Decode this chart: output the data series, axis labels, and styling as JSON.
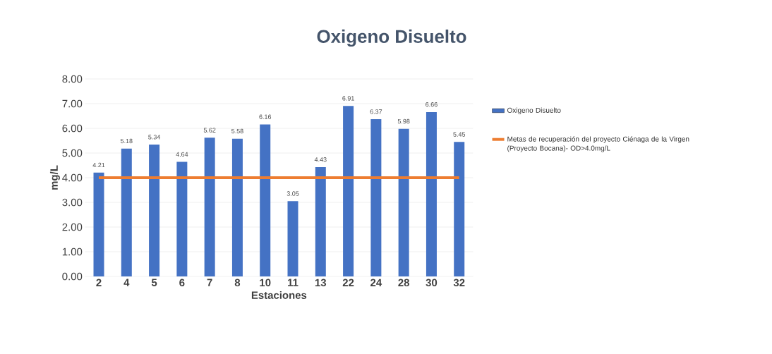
{
  "chart_data": {
    "type": "bar",
    "title": "Oxigeno Disuelto",
    "xlabel": "Estaciones",
    "ylabel": "mg/L",
    "categories": [
      "2",
      "4",
      "5",
      "6",
      "7",
      "8",
      "10",
      "11",
      "13",
      "22",
      "24",
      "28",
      "30",
      "32"
    ],
    "series": [
      {
        "name": "Oxigeno Disuelto",
        "color": "#4472c4",
        "values": [
          4.21,
          5.18,
          5.34,
          4.64,
          5.62,
          5.58,
          6.16,
          3.05,
          4.43,
          6.91,
          6.37,
          5.98,
          6.66,
          5.45
        ],
        "value_labels": [
          "4.21",
          "5.18",
          "5.34",
          "4.64",
          "5.62",
          "5.58",
          "6.16",
          "3.05",
          "4.43",
          "6.91",
          "6.37",
          "5.98",
          "6.66",
          "5.45"
        ]
      },
      {
        "name": "Metas de recuperación del proyecto Ciénaga de la Virgen  (Proyecto Bocana)- OD>4.0mg/L",
        "type": "line",
        "color": "#ed7d31",
        "values": [
          4.0,
          4.0,
          4.0,
          4.0,
          4.0,
          4.0,
          4.0,
          4.0,
          4.0,
          4.0,
          4.0,
          4.0,
          4.0,
          4.0
        ],
        "marker": "none",
        "line_style": "solid"
      }
    ],
    "ylim": [
      0,
      8
    ],
    "yticks": [
      {
        "value": 0,
        "label": "0.00"
      },
      {
        "value": 1,
        "label": "1.00"
      },
      {
        "value": 2,
        "label": "2.00"
      },
      {
        "value": 3,
        "label": "3.00"
      },
      {
        "value": 4,
        "label": "4.00"
      },
      {
        "value": 5,
        "label": "5.00"
      },
      {
        "value": 6,
        "label": "6.00"
      },
      {
        "value": 7,
        "label": "7.00"
      },
      {
        "value": 8,
        "label": "8.00"
      }
    ],
    "grid": "y",
    "legend": "right"
  }
}
